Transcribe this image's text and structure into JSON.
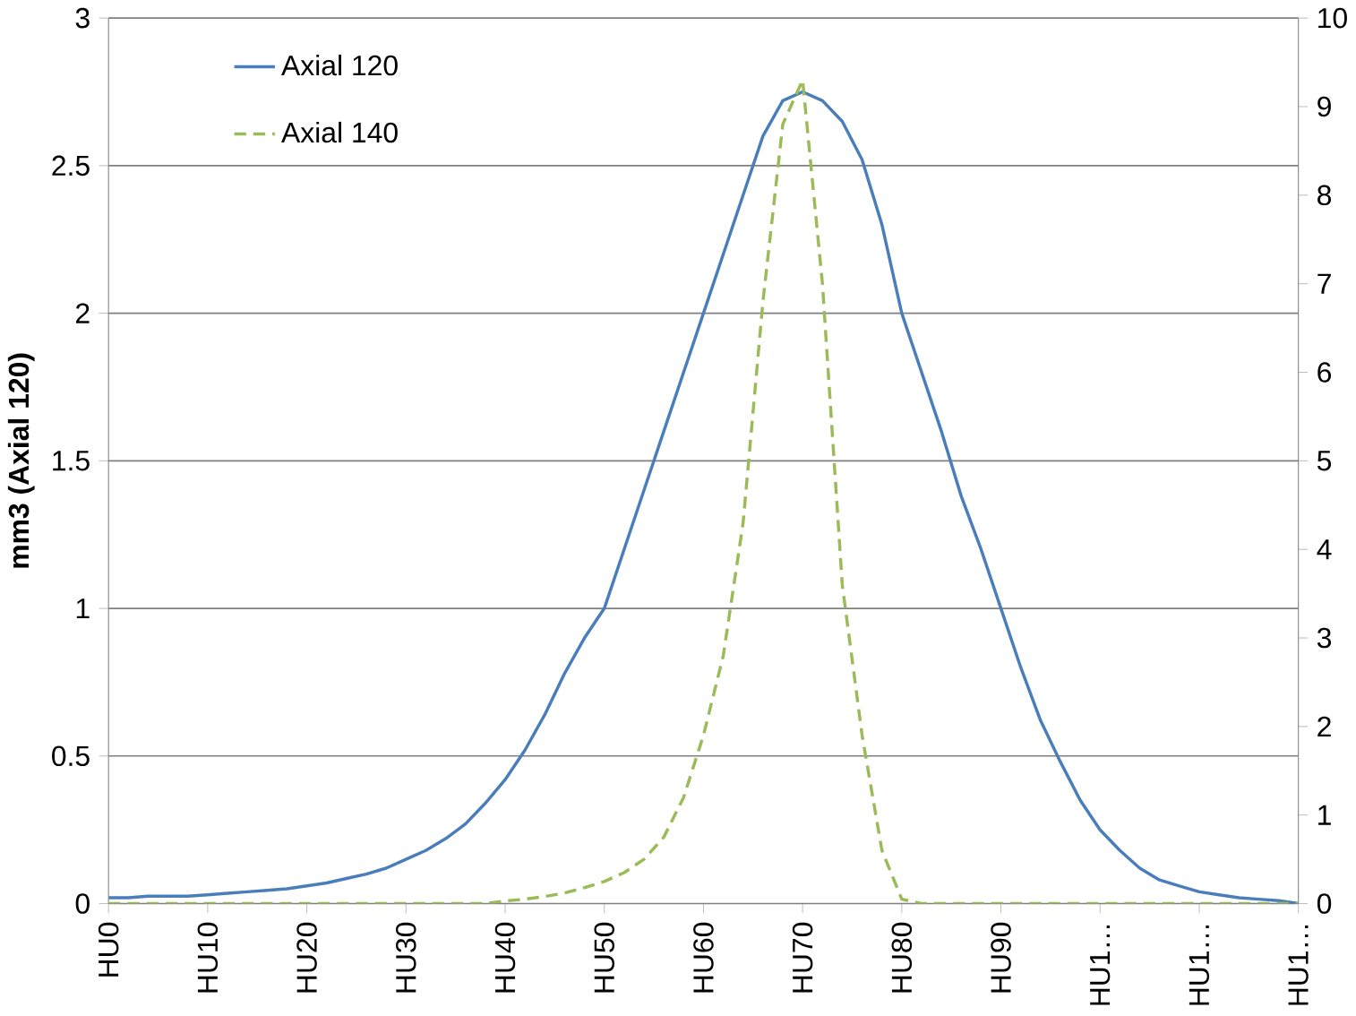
{
  "chart_data": {
    "type": "line",
    "categories": [
      "HU0",
      null,
      null,
      null,
      null,
      "HU10",
      null,
      null,
      null,
      null,
      "HU20",
      null,
      null,
      null,
      null,
      "HU30",
      null,
      null,
      null,
      null,
      "HU40",
      null,
      null,
      null,
      null,
      "HU50",
      null,
      null,
      null,
      null,
      "HU60",
      null,
      null,
      null,
      null,
      "HU70",
      null,
      null,
      null,
      null,
      "HU80",
      null,
      null,
      null,
      null,
      "HU90",
      null,
      null,
      null,
      null,
      "HU1…",
      null,
      null,
      null,
      null,
      "HU1…",
      null,
      null,
      null,
      null,
      "HU1…"
    ],
    "series": [
      {
        "name": "Axial 120",
        "color": "#4a7ebb",
        "line_style": "solid",
        "axis": "y",
        "values": [
          0.02,
          0.02,
          0.025,
          0.025,
          0.025,
          0.03,
          0.035,
          0.04,
          0.045,
          0.05,
          0.06,
          0.07,
          0.085,
          0.1,
          0.12,
          0.15,
          0.18,
          0.22,
          0.27,
          0.34,
          0.42,
          0.52,
          0.64,
          0.78,
          0.9,
          1.0,
          1.2,
          1.4,
          1.6,
          1.8,
          2.0,
          2.2,
          2.4,
          2.6,
          2.72,
          2.75,
          2.72,
          2.65,
          2.52,
          2.3,
          2.0,
          1.8,
          1.6,
          1.38,
          1.2,
          1.0,
          0.8,
          0.62,
          0.48,
          0.35,
          0.25,
          0.18,
          0.12,
          0.08,
          0.06,
          0.04,
          0.03,
          0.02,
          0.015,
          0.01,
          0.0
        ]
      },
      {
        "name": "Axial 140",
        "color": "#9bbb59",
        "line_style": "dashed",
        "axis": "y2",
        "values": [
          0,
          0,
          0,
          0,
          0,
          0,
          0,
          0,
          0,
          0,
          0,
          0,
          0,
          0,
          0,
          0,
          0,
          0,
          0,
          0,
          0.03,
          0.05,
          0.08,
          0.12,
          0.18,
          0.25,
          0.35,
          0.5,
          0.75,
          1.2,
          1.9,
          2.8,
          4.3,
          6.8,
          8.8,
          9.3,
          7.0,
          3.6,
          1.9,
          0.6,
          0.05,
          0,
          0,
          0,
          0,
          0,
          0,
          0,
          0,
          0,
          0,
          0,
          0,
          0,
          0,
          0,
          0,
          0,
          0,
          0,
          0
        ]
      }
    ],
    "ylabel": "mm3 (Axial 120)",
    "ylim": [
      0,
      3
    ],
    "yticks": [
      0,
      0.5,
      1,
      1.5,
      2,
      2.5,
      3
    ],
    "y2lim": [
      0,
      10
    ],
    "y2ticks": [
      0,
      1,
      2,
      3,
      4,
      5,
      6,
      7,
      8,
      9,
      10
    ],
    "grid": "y",
    "legend": "top left"
  }
}
